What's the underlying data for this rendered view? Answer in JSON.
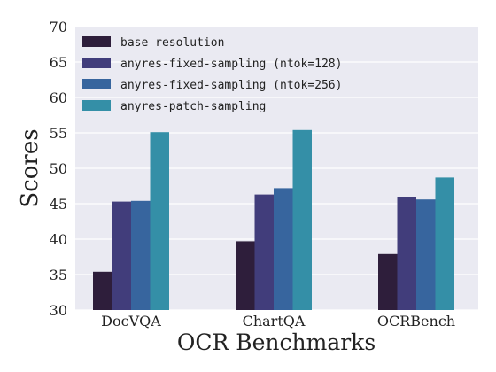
{
  "chart_data": {
    "type": "bar",
    "title": "",
    "xlabel": "OCR Benchmarks",
    "ylabel": "Scores",
    "ylim": [
      30,
      70
    ],
    "yticks": [
      30,
      35,
      40,
      45,
      50,
      55,
      60,
      65,
      70
    ],
    "grid": true,
    "legend_position": "top-left",
    "categories": [
      "DocVQA",
      "ChartQA",
      "OCRBench"
    ],
    "series": [
      {
        "name": "base resolution",
        "color": "#2e1e3b",
        "values": [
          35.4,
          39.7,
          37.9
        ]
      },
      {
        "name": "anyres-fixed-sampling (ntok=128)",
        "color": "#413d7b",
        "values": [
          45.3,
          46.3,
          46.0
        ]
      },
      {
        "name": "anyres-fixed-sampling (ntok=256)",
        "color": "#37659e",
        "values": [
          45.4,
          47.2,
          45.6
        ]
      },
      {
        "name": "anyres-patch-sampling",
        "color": "#348fa7",
        "values": [
          55.1,
          55.4,
          48.7
        ]
      }
    ]
  }
}
